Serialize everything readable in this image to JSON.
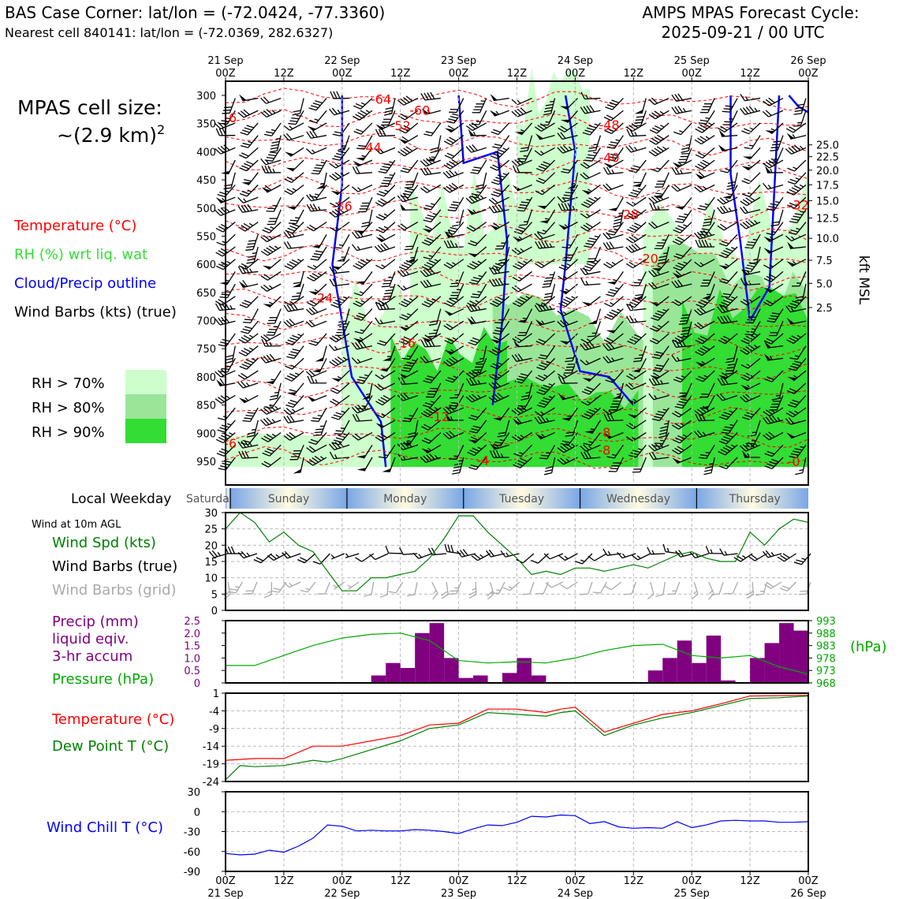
{
  "header": {
    "title_left": "BAS Case Corner: lat/lon = (-72.0424, -77.3360)",
    "subtitle_left": "Nearest cell 840141: lat/lon = (-72.0369, 282.6327)",
    "title_right_1": "AMPS MPAS Forecast Cycle:",
    "title_right_2": "2025-09-21 / 00 UTC",
    "cell_size_1": "MPAS cell size:",
    "cell_size_2": "~(2.9 km)",
    "cell_size_sup": "2"
  },
  "colors": {
    "temperature": "#ff0000",
    "rh_label": "#33dd33",
    "cloud": "#0000ff",
    "rh70": "#ccffcc",
    "rh80": "#99e699",
    "rh90": "#33dd33",
    "precip": "#800080",
    "pressure": "#00aa00",
    "dewpoint": "#008000",
    "windspd": "#008000",
    "grid_barb": "#aaaaaa",
    "windchill": "#0000ff"
  },
  "time_axis": {
    "top_ticks": [
      {
        "h": 0,
        "l1": "21 Sep",
        "l2": "00Z"
      },
      {
        "h": 12,
        "l1": "",
        "l2": "12Z"
      },
      {
        "h": 24,
        "l1": "22 Sep",
        "l2": "00Z"
      },
      {
        "h": 36,
        "l1": "",
        "l2": "12Z"
      },
      {
        "h": 48,
        "l1": "23 Sep",
        "l2": "00Z"
      },
      {
        "h": 60,
        "l1": "",
        "l2": "12Z"
      },
      {
        "h": 72,
        "l1": "24 Sep",
        "l2": "00Z"
      },
      {
        "h": 84,
        "l1": "",
        "l2": "12Z"
      },
      {
        "h": 96,
        "l1": "25 Sep",
        "l2": "00Z"
      },
      {
        "h": 108,
        "l1": "",
        "l2": "12Z"
      },
      {
        "h": 120,
        "l1": "26 Sep",
        "l2": "00Z"
      }
    ],
    "bottom_ticks": [
      {
        "h": 0,
        "l1": "00Z",
        "l2": "21 Sep"
      },
      {
        "h": 12,
        "l1": "12Z",
        "l2": ""
      },
      {
        "h": 24,
        "l1": "00Z",
        "l2": "22 Sep"
      },
      {
        "h": 36,
        "l1": "12Z",
        "l2": ""
      },
      {
        "h": 48,
        "l1": "00Z",
        "l2": "23 Sep"
      },
      {
        "h": 60,
        "l1": "12Z",
        "l2": ""
      },
      {
        "h": 72,
        "l1": "00Z",
        "l2": "24 Sep"
      },
      {
        "h": 84,
        "l1": "12Z",
        "l2": ""
      },
      {
        "h": 96,
        "l1": "00Z",
        "l2": "25 Sep"
      },
      {
        "h": 108,
        "l1": "12Z",
        "l2": ""
      },
      {
        "h": 120,
        "l1": "00Z",
        "l2": "26 Sep"
      }
    ]
  },
  "chart_data": [
    {
      "type": "heatmap",
      "name_id": "vertical-profile",
      "x_range_hours": [
        0,
        120
      ],
      "y_label_right": "kft MSL",
      "pressure_ticks": [
        300,
        350,
        400,
        450,
        500,
        550,
        600,
        650,
        700,
        750,
        800,
        850,
        900,
        950
      ],
      "kft_ticks": [
        "25.0",
        "22.5",
        "20.0",
        "17.5",
        "15.0",
        "12.5",
        "10.0",
        "7.5",
        "5.0",
        "2.5"
      ],
      "kft_tick_pressures": [
        350,
        371,
        395,
        421,
        449,
        480,
        516,
        555,
        596,
        639
      ],
      "legend": [
        {
          "label": "Temperature (°C)",
          "color": "#ff0000"
        },
        {
          "label": "RH (%) wrt liq. wat",
          "color": "#33dd33"
        },
        {
          "label": "Cloud/Precip outline",
          "color": "#0000ff"
        },
        {
          "label": "Wind Barbs (kts) (true)",
          "color": "#000000"
        }
      ],
      "rh_legend": [
        {
          "label": "RH > 70%",
          "color": "#ccffcc"
        },
        {
          "label": "RH > 80%",
          "color": "#99e699"
        },
        {
          "label": "RH > 90%",
          "color": "#33dd33"
        }
      ],
      "temp_contour_labels": [
        {
          "h": 32,
          "p": 306,
          "v": "-64"
        },
        {
          "h": 40,
          "p": 326,
          "v": "-60"
        },
        {
          "h": 36,
          "p": 353,
          "v": "-52"
        },
        {
          "h": 30,
          "p": 392,
          "v": "-44"
        },
        {
          "h": 24,
          "p": 496,
          "v": "-36"
        },
        {
          "h": 20,
          "p": 659,
          "v": "-24"
        },
        {
          "h": 37,
          "p": 739,
          "v": "-16"
        },
        {
          "h": 44,
          "p": 870,
          "v": "-12"
        },
        {
          "h": 53,
          "p": 948,
          "v": "-4"
        },
        {
          "h": 79,
          "p": 352,
          "v": "-48"
        },
        {
          "h": 79,
          "p": 410,
          "v": "-40"
        },
        {
          "h": 83,
          "p": 511,
          "v": "-28"
        },
        {
          "h": 87,
          "p": 589,
          "v": "-20"
        },
        {
          "h": 78,
          "p": 898,
          "v": "-8"
        },
        {
          "h": 78,
          "p": 930,
          "v": "-8"
        },
        {
          "h": 118,
          "p": 494,
          "v": "-32"
        },
        {
          "h": 117,
          "p": 950,
          "v": "-0"
        },
        {
          "h": 1,
          "p": 339,
          "v": "-6"
        },
        {
          "h": 1,
          "p": 918,
          "v": "-6"
        }
      ]
    },
    {
      "type": "line",
      "name_id": "wind",
      "title": "Wind at 10m AGL",
      "ylim": [
        0,
        30
      ],
      "yticks": [
        0,
        5,
        10,
        15,
        20,
        25,
        30
      ],
      "legend": [
        {
          "label": "Wind Spd (kts)",
          "color": "#008000"
        },
        {
          "label": "Wind Barbs (true)",
          "color": "#000000"
        },
        {
          "label": "Wind Barbs (grid)",
          "color": "#aaaaaa"
        }
      ],
      "series": [
        {
          "name": "Wind Spd (kts)",
          "x": [
            0,
            3,
            6,
            9,
            12,
            15,
            18,
            21,
            24,
            27,
            30,
            33,
            36,
            39,
            42,
            45,
            48,
            51,
            54,
            57,
            60,
            63,
            66,
            69,
            72,
            75,
            78,
            81,
            84,
            87,
            90,
            93,
            96,
            99,
            102,
            105,
            108,
            111,
            114,
            117,
            120
          ],
          "values": [
            25,
            30,
            27,
            21,
            24,
            20,
            18,
            12,
            6,
            6,
            10,
            10,
            11,
            12,
            16,
            22,
            29,
            29,
            24,
            20,
            16,
            11,
            12,
            11,
            13,
            13,
            12,
            13,
            14,
            13,
            15,
            17,
            18,
            16,
            15,
            15,
            24,
            20,
            25,
            28,
            27
          ]
        }
      ]
    },
    {
      "type": "bar",
      "name_id": "precip-pressure",
      "legend": [
        {
          "label": "Precip (mm)",
          "color": "#800080"
        },
        {
          "label": "liquid eqiv.",
          "color": "#800080"
        },
        {
          "label": "3-hr accum",
          "color": "#800080"
        },
        {
          "label": "Pressure (hPa)",
          "color": "#00aa00"
        }
      ],
      "ylim_left": [
        0,
        2.5
      ],
      "yticks_left": [
        "0",
        "0.5",
        "1.0",
        "1.5",
        "2.0",
        "2.5"
      ],
      "ylim_right": [
        968,
        993
      ],
      "yticks_right": [
        "968",
        "973",
        "978",
        "983",
        "988",
        "993"
      ],
      "ylabel_right": "(hPa)",
      "precip_x": [
        33,
        36,
        39,
        42,
        45,
        48,
        51,
        54,
        57,
        60,
        63,
        66,
        69,
        72,
        75,
        78,
        81,
        84,
        87,
        90,
        93,
        96,
        99,
        102,
        105,
        108,
        111,
        114,
        117,
        120
      ],
      "precip_values": [
        0.3,
        0.8,
        0.6,
        2.0,
        2.4,
        1.0,
        0.2,
        0.3,
        0,
        0.4,
        1.0,
        0.3,
        0,
        0,
        0,
        0,
        0,
        0,
        0,
        0.5,
        1.0,
        1.7,
        0.8,
        1.9,
        0.1,
        0,
        1.0,
        1.6,
        2.4,
        2.1
      ],
      "pressure_x": [
        0,
        6,
        12,
        18,
        24,
        30,
        36,
        42,
        48,
        54,
        60,
        66,
        72,
        78,
        84,
        90,
        96,
        102,
        108,
        114,
        120
      ],
      "pressure_values": [
        975,
        975,
        979,
        983,
        986,
        987.5,
        988,
        985,
        977,
        976,
        976.5,
        976,
        978,
        981,
        983,
        983.5,
        979,
        978,
        979,
        974.5,
        971.5
      ]
    },
    {
      "type": "line",
      "name_id": "temperature",
      "ylim": [
        -24,
        1
      ],
      "yticks": [
        "1",
        "-4",
        "-9",
        "-14",
        "-19",
        "-24"
      ],
      "legend": [
        {
          "label": "Temperature (°C)",
          "color": "#ff0000"
        },
        {
          "label": "Dew Point T (°C)",
          "color": "#008000"
        }
      ],
      "series": [
        {
          "name": "Temperature (°C)",
          "x": [
            0,
            6,
            12,
            18,
            24,
            30,
            36,
            42,
            48,
            54,
            60,
            66,
            69,
            72,
            75,
            78,
            84,
            90,
            96,
            102,
            108,
            114,
            120
          ],
          "values": [
            -18,
            -17.5,
            -17.5,
            -14,
            -14,
            -12.5,
            -11,
            -8,
            -7.5,
            -3.5,
            -3.5,
            -4.5,
            -3.5,
            -3,
            -6.5,
            -10,
            -7.5,
            -5,
            -4,
            -2,
            0.2,
            0.3,
            0.4
          ]
        },
        {
          "name": "Dew Point T (°C)",
          "x": [
            0,
            3,
            6,
            12,
            18,
            21,
            24,
            30,
            36,
            42,
            48,
            54,
            60,
            66,
            69,
            72,
            75,
            78,
            84,
            90,
            96,
            102,
            108,
            114,
            120
          ],
          "values": [
            -23.5,
            -19.5,
            -19.8,
            -19.5,
            -18,
            -18.5,
            -17.5,
            -15,
            -12.5,
            -9,
            -8,
            -4.5,
            -5,
            -5.5,
            -4.5,
            -4,
            -7.5,
            -11,
            -8,
            -6,
            -4.5,
            -2.5,
            -0.5,
            -0.3,
            0.2
          ]
        }
      ]
    },
    {
      "type": "line",
      "name_id": "windchill",
      "ylim": [
        -90,
        30
      ],
      "yticks": [
        "30",
        "0",
        "-30",
        "-60",
        "-90"
      ],
      "legend": [
        {
          "label": "Wind Chill T (°C)",
          "color": "#0000ff"
        }
      ],
      "series": [
        {
          "name": "Wind Chill T (°C)",
          "x": [
            0,
            3,
            6,
            9,
            12,
            15,
            18,
            21,
            24,
            27,
            30,
            33,
            36,
            39,
            42,
            45,
            48,
            51,
            54,
            57,
            60,
            63,
            66,
            69,
            72,
            75,
            78,
            81,
            84,
            87,
            90,
            93,
            96,
            99,
            102,
            105,
            108,
            111,
            114,
            117,
            120
          ],
          "values": [
            -63,
            -65,
            -64,
            -58,
            -61,
            -52,
            -40,
            -20,
            -22,
            -29,
            -28,
            -29,
            -29,
            -27,
            -28,
            -30,
            -33,
            -26,
            -20,
            -21,
            -16,
            -7,
            -8,
            -5,
            -6,
            -18,
            -15,
            -23,
            -25,
            -24,
            -25,
            -15,
            -24,
            -20,
            -14,
            -13,
            -14,
            -14,
            -16,
            -16,
            -15
          ]
        }
      ]
    }
  ],
  "weekday_strip": {
    "label": "Local Weekday",
    "days": [
      {
        "name": "Saturday",
        "start": -7,
        "end": 1
      },
      {
        "name": "Sunday",
        "start": 1,
        "end": 25
      },
      {
        "name": "Monday",
        "start": 25,
        "end": 49
      },
      {
        "name": "Tuesday",
        "start": 49,
        "end": 73
      },
      {
        "name": "Wednesday",
        "start": 73,
        "end": 97
      },
      {
        "name": "Thursday",
        "start": 97,
        "end": 121
      }
    ]
  }
}
